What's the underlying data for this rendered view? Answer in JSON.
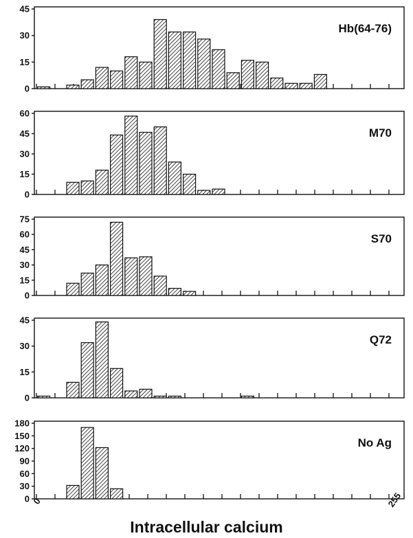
{
  "chart_data": [
    {
      "type": "bar",
      "panel_label": "Hb(64-76)",
      "ylim": [
        0,
        45
      ],
      "yticks": [
        0,
        15,
        30,
        45
      ],
      "bins": [
        0,
        1,
        2,
        3,
        4,
        5,
        6,
        7,
        8,
        9,
        10,
        11,
        12,
        13,
        14,
        15,
        16,
        17,
        18,
        19,
        20,
        21,
        22,
        23,
        24
      ],
      "values": [
        1,
        0,
        2,
        5,
        12,
        10,
        18,
        15,
        39,
        32,
        32,
        28,
        22,
        9,
        16,
        15,
        6,
        3,
        3,
        8,
        0,
        0,
        0,
        0,
        0
      ]
    },
    {
      "type": "bar",
      "panel_label": "M70",
      "ylim": [
        0,
        60
      ],
      "yticks": [
        0,
        15,
        30,
        45,
        60
      ],
      "bins": [
        0,
        1,
        2,
        3,
        4,
        5,
        6,
        7,
        8,
        9,
        10,
        11,
        12,
        13,
        14,
        15,
        16,
        17,
        18,
        19,
        20,
        21,
        22,
        23,
        24
      ],
      "values": [
        0,
        0,
        9,
        10,
        18,
        44,
        58,
        46,
        50,
        24,
        15,
        3,
        4,
        0,
        0,
        0,
        0,
        0,
        0,
        0,
        0,
        0,
        0,
        0,
        0
      ]
    },
    {
      "type": "bar",
      "panel_label": "S70",
      "ylim": [
        0,
        75
      ],
      "yticks": [
        0,
        15,
        30,
        45,
        60,
        75
      ],
      "bins": [
        0,
        1,
        2,
        3,
        4,
        5,
        6,
        7,
        8,
        9,
        10,
        11,
        12,
        13,
        14,
        15,
        16,
        17,
        18,
        19,
        20,
        21,
        22,
        23,
        24
      ],
      "values": [
        0,
        0,
        12,
        22,
        30,
        72,
        37,
        38,
        19,
        7,
        4,
        0,
        0,
        0,
        0,
        0,
        0,
        0,
        0,
        0,
        0,
        0,
        0,
        0,
        0
      ]
    },
    {
      "type": "bar",
      "panel_label": "Q72",
      "ylim": [
        0,
        45
      ],
      "yticks": [
        0,
        15,
        30,
        45
      ],
      "bins": [
        0,
        1,
        2,
        3,
        4,
        5,
        6,
        7,
        8,
        9,
        10,
        11,
        12,
        13,
        14,
        15,
        16,
        17,
        18,
        19,
        20,
        21,
        22,
        23,
        24
      ],
      "values": [
        1,
        0,
        9,
        32,
        44,
        17,
        4,
        5,
        1,
        1,
        0,
        0,
        0,
        0,
        1,
        0,
        0,
        0,
        0,
        0,
        0,
        0,
        0,
        0,
        0
      ]
    },
    {
      "type": "bar",
      "panel_label": "No Ag",
      "ylim": [
        0,
        180
      ],
      "yticks": [
        0,
        30,
        60,
        90,
        120,
        150,
        180
      ],
      "bins": [
        0,
        1,
        2,
        3,
        4,
        5,
        6,
        7,
        8,
        9,
        10,
        11,
        12,
        13,
        14,
        15,
        16,
        17,
        18,
        19,
        20,
        21,
        22,
        23,
        24
      ],
      "values": [
        0,
        0,
        32,
        170,
        122,
        24,
        0,
        0,
        0,
        0,
        0,
        0,
        0,
        0,
        0,
        0,
        0,
        0,
        0,
        0,
        0,
        0,
        0,
        0,
        0
      ]
    }
  ],
  "x_axis": {
    "label": "Intracellular calcium",
    "min_label": "0",
    "max_label": "255"
  }
}
